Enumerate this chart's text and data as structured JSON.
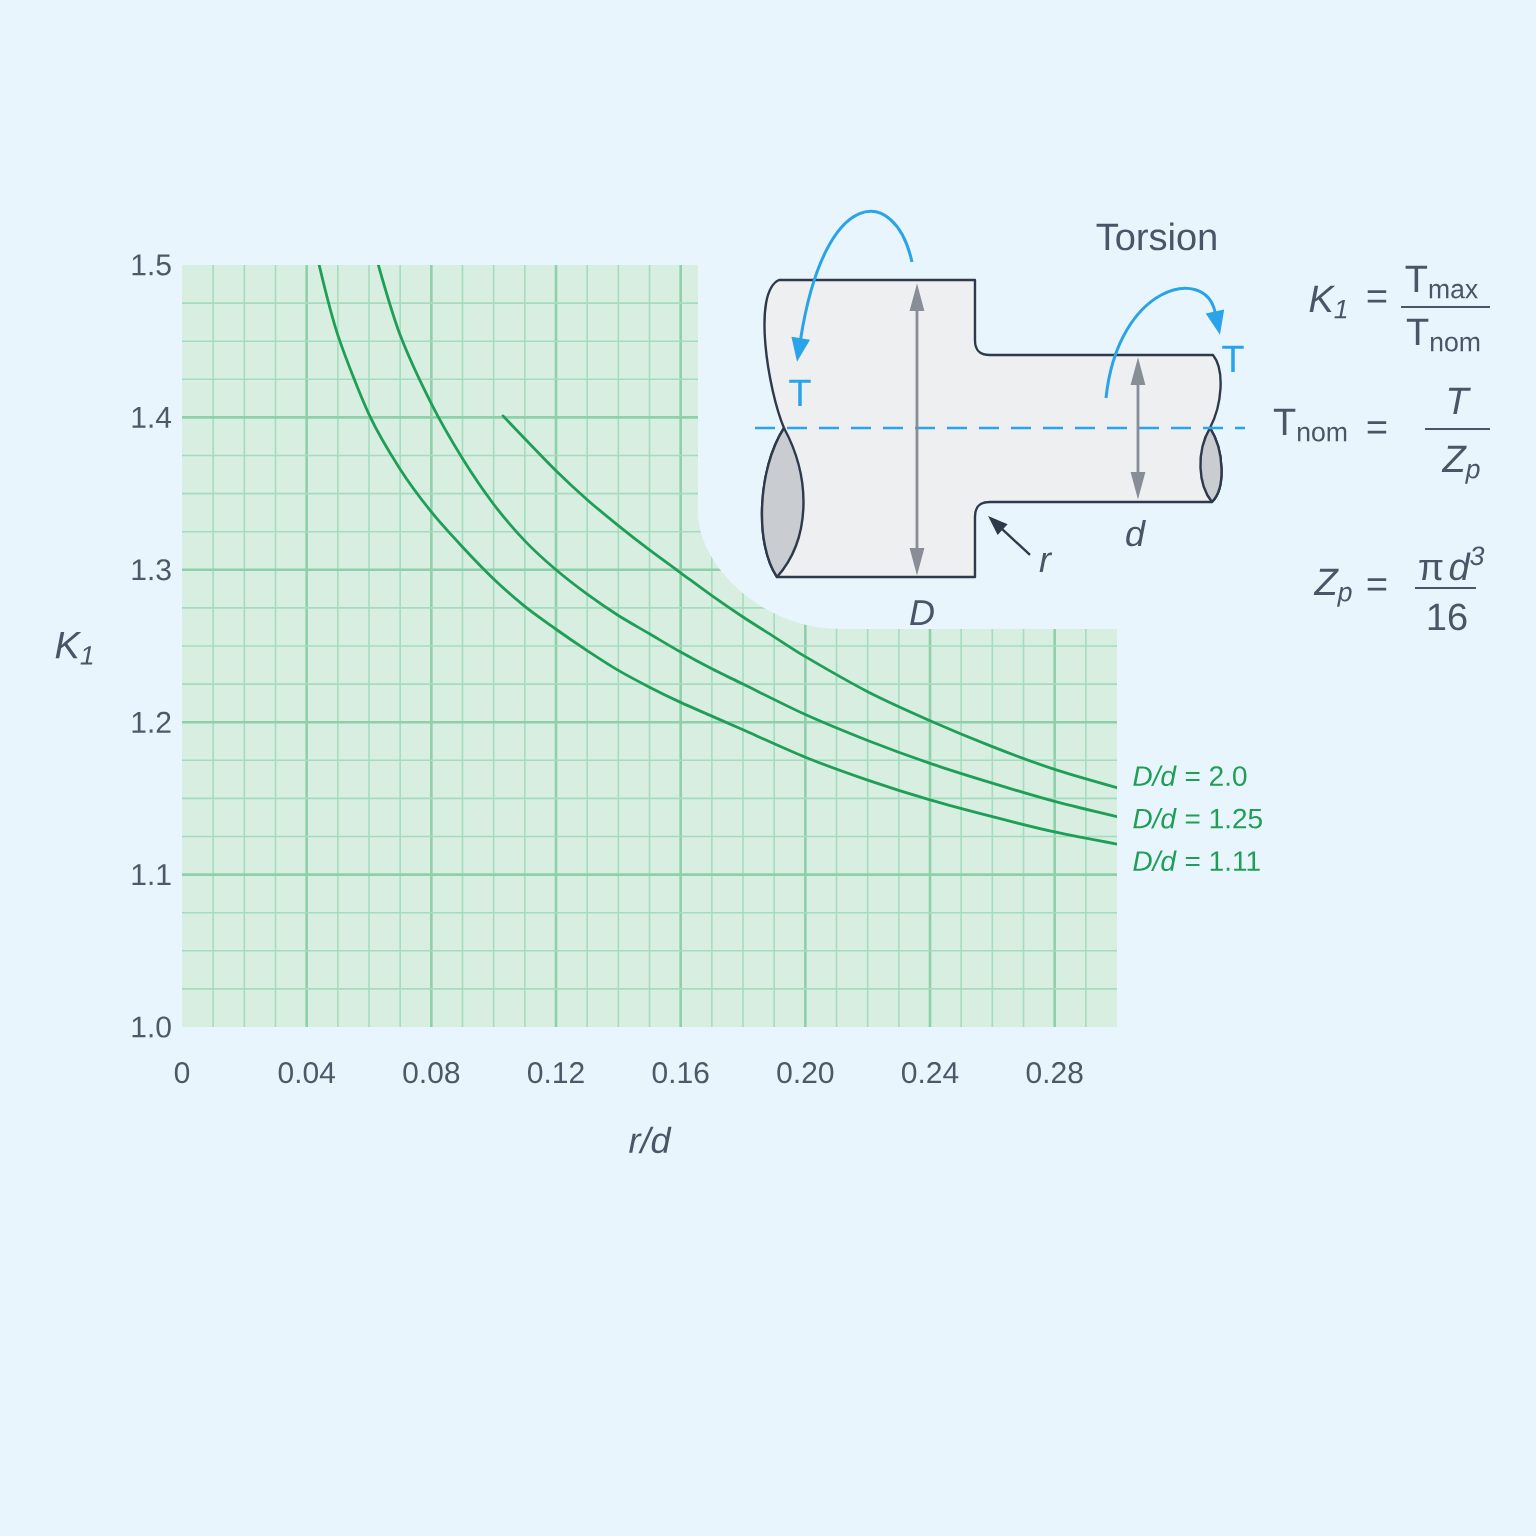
{
  "chart_data": {
    "type": "line",
    "xlabel": "r/d",
    "ylabel": "K$_{1}$",
    "xlim": [
      0,
      0.3
    ],
    "ylim": [
      1,
      1.5
    ],
    "xticks": [
      0,
      {
        "value": 0.01,
        "label": null
      },
      {
        "value": 0.02,
        "label": null
      },
      {
        "value": 0.03,
        "label": null
      },
      0.04,
      {
        "value": 0.05,
        "label": null
      },
      {
        "value": 0.06,
        "label": null
      },
      {
        "value": 0.07,
        "label": null
      },
      0.08,
      {
        "value": 0.09,
        "label": null
      },
      {
        "value": 0.1,
        "label": null
      },
      {
        "value": 0.11,
        "label": null
      },
      0.12,
      {
        "value": 0.13,
        "label": null
      },
      {
        "value": 0.14,
        "label": null
      },
      {
        "value": 0.15,
        "label": null
      },
      0.16,
      {
        "value": 0.17,
        "label": null
      },
      {
        "value": 0.18,
        "label": null
      },
      {
        "value": 0.19,
        "label": null
      },
      {
        "value": 0.2,
        "label": "0.20"
      },
      {
        "value": 0.21,
        "label": null
      },
      {
        "value": 0.22,
        "label": null
      },
      {
        "value": 0.23,
        "label": null
      },
      0.24,
      {
        "value": 0.25,
        "label": null
      },
      {
        "value": 0.26,
        "label": null
      },
      {
        "value": 0.27,
        "label": null
      },
      0.28,
      {
        "value": 0.29,
        "label": null
      }
    ],
    "yticks": [
      {
        "value": 1,
        "label": "1.0"
      },
      {
        "value": 1.025,
        "label": null
      },
      {
        "value": 1.05,
        "label": null
      },
      {
        "value": 1.075,
        "label": null
      },
      1.1,
      {
        "value": 1.125,
        "label": null
      },
      {
        "value": 1.15,
        "label": null
      },
      {
        "value": 1.175,
        "label": null
      },
      1.2,
      {
        "value": 1.225,
        "label": null
      },
      {
        "value": 1.25,
        "label": null
      },
      {
        "value": 1.275,
        "label": null
      },
      1.3,
      {
        "value": 1.325,
        "label": null
      },
      {
        "value": 1.35,
        "label": null
      },
      {
        "value": 1.375,
        "label": null
      },
      1.4,
      {
        "value": 1.425,
        "label": null
      },
      {
        "value": 1.45,
        "label": null
      },
      {
        "value": 1.475,
        "label": null
      },
      1.5
    ],
    "grid": true,
    "series": [
      {
        "name": "*D/d* = 2.0",
        "color": "#1f9e57",
        "x": [
          0.103,
          0.11,
          0.12,
          0.13,
          0.14,
          0.15,
          0.16,
          0.17,
          0.18,
          0.19,
          0.2,
          0.22,
          0.24,
          0.26,
          0.28,
          0.3
        ],
        "values": [
          1.401,
          1.386,
          1.365,
          1.346,
          1.329,
          1.313,
          1.298,
          1.283,
          1.269,
          1.256,
          1.243,
          1.22,
          1.201,
          1.184,
          1.169,
          1.157
        ]
      },
      {
        "name": "*D/d* = 1.25",
        "color": "#1f9e57",
        "x": [
          0.063,
          0.07,
          0.08,
          0.09,
          0.1,
          0.11,
          0.12,
          0.13,
          0.14,
          0.15,
          0.16,
          0.17,
          0.18,
          0.2,
          0.22,
          0.24,
          0.26,
          0.28,
          0.3
        ],
        "values": [
          1.5,
          1.454,
          1.409,
          1.373,
          1.343,
          1.319,
          1.3,
          1.284,
          1.27,
          1.258,
          1.246,
          1.235,
          1.225,
          1.205,
          1.188,
          1.173,
          1.16,
          1.148,
          1.138
        ]
      },
      {
        "name": "*D/d* = 1.11",
        "color": "#1f9e57",
        "x": [
          0.044,
          0.05,
          0.06,
          0.07,
          0.08,
          0.09,
          0.1,
          0.11,
          0.12,
          0.13,
          0.14,
          0.15,
          0.16,
          0.17,
          0.18,
          0.2,
          0.22,
          0.24,
          0.26,
          0.28,
          0.3
        ],
        "values": [
          1.5,
          1.454,
          1.402,
          1.366,
          1.338,
          1.315,
          1.294,
          1.276,
          1.261,
          1.247,
          1.234,
          1.223,
          1.213,
          1.204,
          1.195,
          1.177,
          1.162,
          1.149,
          1.138,
          1.128,
          1.12
        ]
      }
    ],
    "annotations": [
      "Torsion",
      "T",
      "T",
      "D",
      "d",
      "r",
      "K$_{1}$",
      "=",
      "T$_{max}$",
      "T$_{nom}$",
      "T$_{nom}$",
      "=",
      "T",
      "Z$_{p}$",
      "Z$_{p}$",
      "=",
      "π",
      "d$^{3}$",
      "16"
    ]
  }
}
